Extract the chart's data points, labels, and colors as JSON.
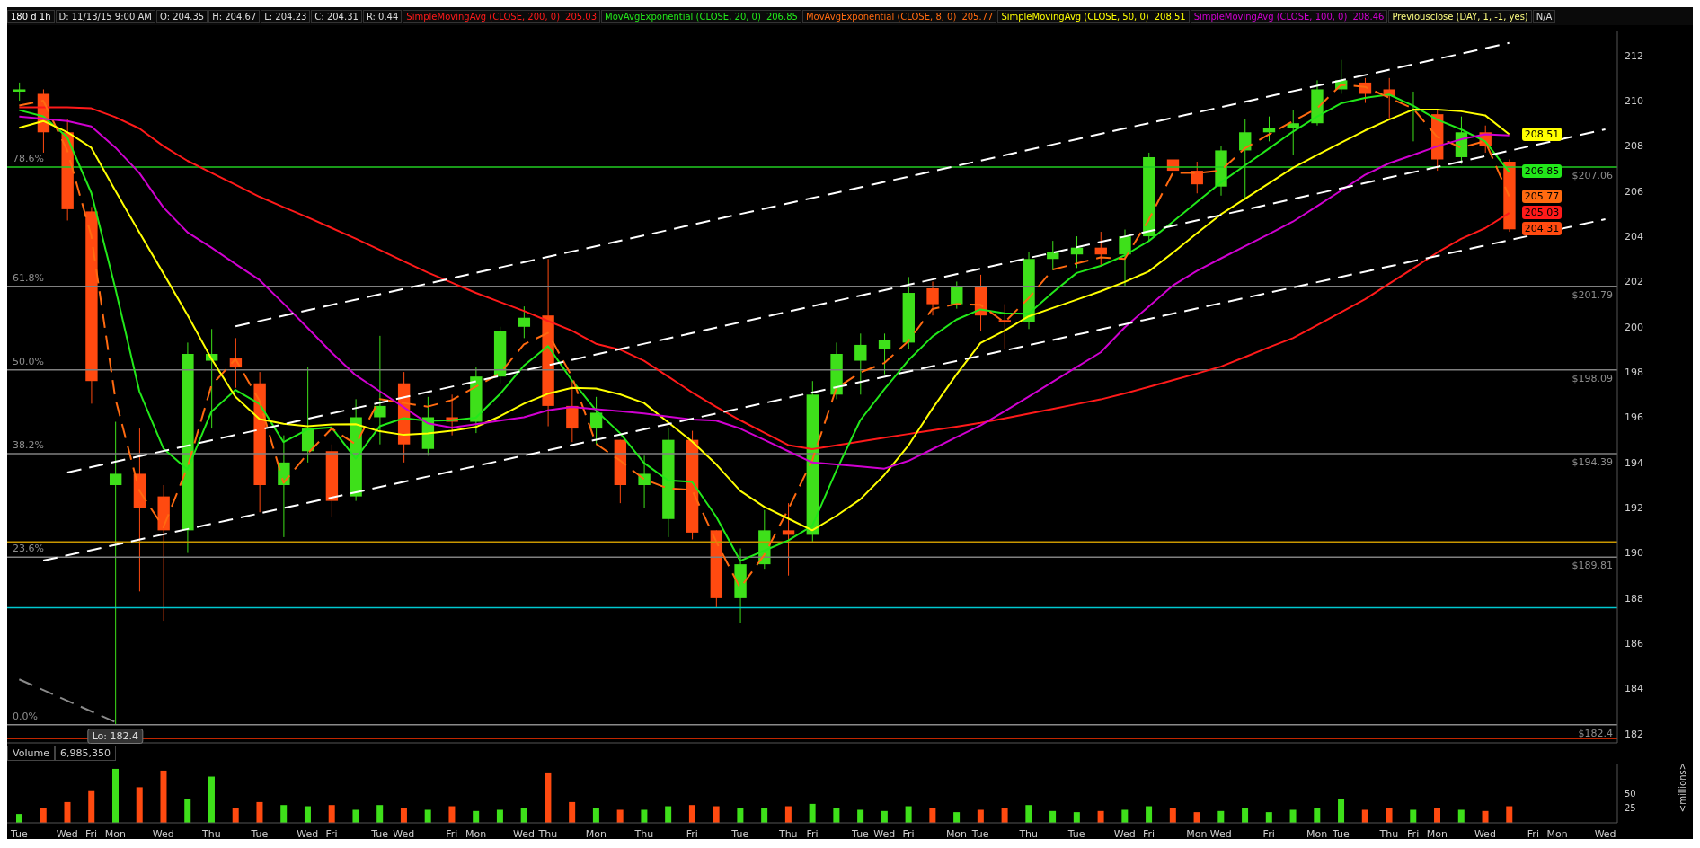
{
  "chart_data": [
    {
      "type": "candlestick",
      "title": "180 d 1h",
      "categories": [
        "Tue",
        null,
        "Wed",
        "Fri",
        "Mon",
        null,
        "Wed",
        null,
        "Thu",
        null,
        "Tue",
        null,
        "Wed",
        "Fri",
        null,
        "Tue",
        "Wed",
        null,
        "Fri",
        "Mon",
        null,
        "Wed",
        "Thu",
        null,
        "Mon",
        null,
        "Thu",
        null,
        "Fri",
        null,
        "Tue",
        null,
        "Thu",
        "Fri",
        null,
        "Tue",
        "Wed",
        "Fri",
        null,
        "Mon",
        "Tue",
        null,
        "Thu",
        null,
        "Tue",
        null,
        "Wed",
        "Fri",
        null,
        "Mon",
        "Wed",
        null,
        "Fri",
        null,
        "Mon",
        "Tue",
        null,
        "Thu",
        "Fri",
        "Mon",
        null,
        "Wed",
        null,
        "Fri",
        "Mon",
        null,
        "Wed"
      ],
      "ohlc": [
        [
          210.4,
          210.8,
          210.0,
          210.5
        ],
        [
          210.3,
          210.5,
          207.7,
          208.6
        ],
        [
          208.6,
          209.2,
          204.7,
          205.2
        ],
        [
          205.1,
          205.3,
          196.6,
          197.6
        ],
        [
          193.0,
          195.8,
          182.4,
          193.5
        ],
        [
          193.5,
          195.5,
          188.3,
          192.0
        ],
        [
          192.5,
          193.0,
          187.0,
          191.0
        ],
        [
          191.0,
          199.3,
          190.0,
          198.8
        ],
        [
          198.5,
          199.9,
          195.5,
          198.8
        ],
        [
          198.6,
          199.5,
          197.3,
          198.2
        ],
        [
          197.5,
          198.0,
          191.8,
          193.0
        ],
        [
          193.0,
          195.2,
          190.7,
          194.0
        ],
        [
          194.5,
          198.2,
          194.0,
          195.5
        ],
        [
          194.5,
          194.8,
          191.6,
          192.3
        ],
        [
          192.5,
          196.8,
          192.3,
          196.0
        ],
        [
          196.0,
          199.6,
          194.8,
          196.5
        ],
        [
          197.5,
          198.0,
          194.0,
          194.8
        ],
        [
          194.6,
          196.9,
          194.3,
          196.0
        ],
        [
          196.0,
          197.0,
          195.2,
          195.8
        ],
        [
          195.8,
          198.2,
          195.3,
          197.8
        ],
        [
          197.8,
          200.0,
          197.5,
          199.8
        ],
        [
          200.0,
          200.9,
          199.5,
          200.4
        ],
        [
          200.5,
          203.0,
          195.6,
          196.5
        ],
        [
          196.5,
          197.6,
          194.9,
          195.5
        ],
        [
          195.5,
          196.9,
          194.8,
          196.2
        ],
        [
          195.0,
          195.0,
          192.2,
          193.0
        ],
        [
          193.0,
          194.3,
          192.0,
          193.5
        ],
        [
          191.5,
          195.5,
          190.7,
          195.0
        ],
        [
          195.0,
          195.4,
          190.6,
          190.9
        ],
        [
          191.0,
          191.0,
          187.6,
          188.0
        ],
        [
          188.0,
          190.2,
          186.9,
          189.5
        ],
        [
          189.5,
          191.9,
          189.3,
          191.0
        ],
        [
          191.0,
          192.2,
          189.0,
          190.8
        ],
        [
          190.8,
          197.6,
          190.5,
          197.0
        ],
        [
          197.0,
          199.3,
          196.8,
          198.8
        ],
        [
          198.5,
          199.7,
          197.0,
          199.2
        ],
        [
          199.0,
          199.7,
          197.9,
          199.4
        ],
        [
          199.3,
          202.2,
          199.0,
          201.5
        ],
        [
          201.7,
          202.0,
          200.5,
          201.0
        ],
        [
          201.0,
          202.0,
          200.8,
          201.8
        ],
        [
          201.8,
          202.3,
          199.8,
          200.5
        ],
        [
          200.3,
          201.0,
          199.0,
          200.2
        ],
        [
          200.2,
          203.3,
          199.9,
          203.0
        ],
        [
          203.0,
          203.8,
          202.5,
          203.3
        ],
        [
          203.2,
          204.0,
          202.6,
          203.5
        ],
        [
          203.5,
          204.2,
          202.7,
          203.2
        ],
        [
          203.2,
          204.3,
          201.8,
          204.0
        ],
        [
          204.0,
          207.7,
          203.8,
          207.5
        ],
        [
          207.4,
          208.0,
          206.3,
          206.9
        ],
        [
          206.9,
          207.3,
          205.9,
          206.3
        ],
        [
          206.2,
          208.0,
          205.8,
          207.8
        ],
        [
          207.8,
          209.2,
          205.6,
          208.6
        ],
        [
          208.6,
          209.3,
          208.2,
          208.8
        ],
        [
          208.8,
          209.6,
          207.6,
          209.0
        ],
        [
          209.0,
          210.9,
          208.9,
          210.5
        ],
        [
          210.5,
          211.8,
          210.3,
          210.9
        ],
        [
          210.8,
          211.0,
          209.9,
          210.3
        ],
        [
          210.5,
          211.0,
          209.2,
          210.2
        ],
        [
          209.6,
          210.4,
          208.2,
          209.6
        ],
        [
          209.4,
          209.6,
          206.9,
          207.4
        ],
        [
          207.5,
          209.3,
          207.2,
          208.6
        ],
        [
          208.6,
          208.9,
          207.7,
          208.0
        ],
        [
          207.3,
          207.4,
          204.2,
          204.31
        ],
        null,
        null,
        null,
        null
      ],
      "colors": [
        "#3ee01a",
        "#ff4a10",
        "#ff4a10",
        "#ff4a10",
        "#3ee01a",
        "#ff4a10",
        "#ff4a10",
        "#3ee01a",
        "#3ee01a",
        "#ff4a10",
        "#ff4a10",
        "#3ee01a",
        "#3ee01a",
        "#ff4a10",
        "#3ee01a",
        "#3ee01a",
        "#ff4a10",
        "#3ee01a",
        "#ff4a10",
        "#3ee01a",
        "#3ee01a",
        "#3ee01a",
        "#ff4a10",
        "#ff4a10",
        "#3ee01a",
        "#ff4a10",
        "#3ee01a",
        "#3ee01a",
        "#ff4a10",
        "#ff4a10",
        "#3ee01a",
        "#3ee01a",
        "#ff4a10",
        "#3ee01a",
        "#3ee01a",
        "#3ee01a",
        "#3ee01a",
        "#3ee01a",
        "#ff4a10",
        "#3ee01a",
        "#ff4a10",
        "#ff4a10",
        "#3ee01a",
        "#3ee01a",
        "#3ee01a",
        "#ff4a10",
        "#3ee01a",
        "#3ee01a",
        "#ff4a10",
        "#ff4a10",
        "#3ee01a",
        "#3ee01a",
        "#3ee01a",
        "#3ee01a",
        "#3ee01a",
        "#3ee01a",
        "#ff4a10",
        "#ff4a10",
        "#3ee01a",
        "#ff4a10",
        "#3ee01a",
        "#ff4a10",
        "#ff4a10",
        null,
        null,
        null,
        null
      ],
      "value_labels": [
        null,
        null,
        null,
        null,
        null,
        null,
        null,
        null,
        null,
        null,
        null,
        null,
        null,
        null,
        null,
        null,
        null,
        null,
        null,
        null,
        null,
        null,
        null,
        null,
        null,
        null,
        null,
        null,
        null,
        null,
        null,
        null,
        null,
        null,
        null,
        null,
        null,
        null,
        null,
        null,
        null,
        null,
        null,
        null,
        null,
        null,
        null,
        null,
        null,
        null,
        null,
        null,
        null,
        null,
        null,
        null,
        null,
        null,
        null,
        null,
        null,
        null,
        "204.31",
        null,
        null,
        null,
        null
      ],
      "series": [
        {
          "type": "line",
          "name": "SimpleMovingAvg (CLOSE, 200, 0)",
          "color": "#ff1a1a",
          "values": [
            209.7,
            209.7,
            209.7,
            209.66,
            209.27,
            208.77,
            207.99,
            207.34,
            206.81,
            206.28,
            205.75,
            205.29,
            204.84,
            204.37,
            203.9,
            203.4,
            202.9,
            202.4,
            201.95,
            201.5,
            201.1,
            200.7,
            200.26,
            199.83,
            199.25,
            198.99,
            198.5,
            197.8,
            197.1,
            196.46,
            195.87,
            195.32,
            194.77,
            194.59,
            194.76,
            194.93,
            195.1,
            195.26,
            195.42,
            195.58,
            195.75,
            195.95,
            196.16,
            196.37,
            196.58,
            196.79,
            197.05,
            197.34,
            197.64,
            197.93,
            198.24,
            198.66,
            199.09,
            199.5,
            200.07,
            200.64,
            201.22,
            201.9,
            202.58,
            203.28,
            203.89,
            204.36,
            205.03,
            null,
            null,
            null,
            null
          ],
          "value_labels": [
            null,
            null,
            null,
            null,
            null,
            null,
            null,
            null,
            null,
            null,
            null,
            null,
            null,
            null,
            null,
            null,
            null,
            null,
            null,
            null,
            null,
            null,
            null,
            null,
            null,
            null,
            null,
            null,
            null,
            null,
            null,
            null,
            null,
            null,
            null,
            null,
            null,
            null,
            null,
            null,
            null,
            null,
            null,
            null,
            null,
            null,
            null,
            null,
            null,
            null,
            null,
            null,
            null,
            null,
            null,
            null,
            null,
            null,
            null,
            null,
            null,
            null,
            "205.03",
            null,
            null,
            null,
            null
          ]
        },
        {
          "type": "line",
          "name": "MovAvgExponential (CLOSE, 20, 0)",
          "color": "#22e81a",
          "values": [
            209.58,
            209.31,
            208.38,
            205.92,
            201.7,
            197.15,
            194.62,
            193.69,
            196.25,
            197.21,
            196.59,
            194.9,
            195.46,
            195.55,
            194.17,
            195.6,
            195.96,
            195.84,
            195.87,
            195.98,
            197.02,
            198.28,
            199.15,
            197.63,
            196.3,
            195.3,
            193.98,
            193.21,
            193.14,
            191.61,
            189.65,
            190.1,
            190.55,
            191.2,
            193.64,
            195.87,
            197.24,
            198.52,
            199.57,
            200.32,
            200.77,
            200.6,
            200.58,
            201.51,
            202.38,
            202.69,
            203.16,
            203.79,
            204.64,
            205.51,
            206.38,
            207.13,
            207.88,
            208.63,
            209.29,
            209.88,
            210.12,
            210.27,
            209.78,
            209.16,
            208.73,
            208.2,
            206.85,
            null,
            null,
            null,
            null
          ],
          "value_labels": [
            null,
            null,
            null,
            null,
            null,
            null,
            null,
            null,
            null,
            null,
            null,
            null,
            null,
            null,
            null,
            null,
            null,
            null,
            null,
            null,
            null,
            null,
            null,
            null,
            null,
            null,
            null,
            null,
            null,
            null,
            null,
            null,
            null,
            null,
            null,
            null,
            null,
            null,
            null,
            null,
            null,
            null,
            null,
            null,
            null,
            null,
            null,
            null,
            null,
            null,
            null,
            null,
            null,
            null,
            null,
            null,
            null,
            null,
            null,
            null,
            null,
            null,
            "206.85",
            null,
            null,
            null,
            null
          ]
        },
        {
          "type": "line",
          "name": "MovAvgExponential (CLOSE, 8, 0)",
          "color": "#ff6a10",
          "line_style": "dashed",
          "values": [
            209.78,
            210.0,
            207.8,
            204.02,
            196.83,
            192.75,
            191.14,
            193.79,
            197.41,
            198.57,
            196.73,
            193.1,
            194.39,
            195.5,
            194.8,
            196.8,
            196.63,
            196.47,
            196.76,
            197.35,
            197.94,
            199.22,
            199.73,
            197.8,
            194.83,
            194.09,
            193.26,
            192.85,
            192.79,
            190.51,
            188.45,
            189.91,
            191.93,
            194.1,
            197.28,
            197.98,
            198.4,
            199.37,
            200.79,
            201.01,
            200.97,
            200.2,
            201.26,
            202.53,
            202.8,
            203.07,
            203.0,
            204.73,
            206.8,
            206.8,
            206.91,
            207.89,
            208.51,
            209.09,
            209.65,
            210.7,
            210.61,
            210.13,
            209.65,
            208.4,
            207.92,
            208.21,
            205.77,
            null,
            null,
            null,
            null
          ],
          "value_labels": [
            null,
            null,
            null,
            null,
            null,
            null,
            null,
            null,
            null,
            null,
            null,
            null,
            null,
            null,
            null,
            null,
            null,
            null,
            null,
            null,
            null,
            null,
            null,
            null,
            null,
            null,
            null,
            null,
            null,
            null,
            null,
            null,
            null,
            null,
            null,
            null,
            null,
            null,
            null,
            null,
            null,
            null,
            null,
            null,
            null,
            null,
            null,
            null,
            null,
            null,
            null,
            null,
            null,
            null,
            null,
            null,
            null,
            null,
            null,
            null,
            null,
            null,
            "205.77",
            null,
            null,
            null,
            null
          ]
        },
        {
          "type": "line",
          "name": "SimpleMovingAvg (CLOSE, 50, 0)",
          "color": "#ffff00",
          "values": [
            208.8,
            209.1,
            208.61,
            207.92,
            206.02,
            204.17,
            202.36,
            200.53,
            198.58,
            196.9,
            195.92,
            195.71,
            195.6,
            195.68,
            195.69,
            195.38,
            195.22,
            195.28,
            195.4,
            195.57,
            196.04,
            196.6,
            197.04,
            197.3,
            197.27,
            197.01,
            196.63,
            195.78,
            194.93,
            193.92,
            192.75,
            192.04,
            191.52,
            191.0,
            191.64,
            192.37,
            193.45,
            194.75,
            196.38,
            197.89,
            199.28,
            199.83,
            200.46,
            200.83,
            201.2,
            201.57,
            201.98,
            202.45,
            203.27,
            204.13,
            204.97,
            205.66,
            206.34,
            207.03,
            207.59,
            208.14,
            208.68,
            209.16,
            209.6,
            209.6,
            209.53,
            209.35,
            208.51,
            null,
            null,
            null,
            null
          ],
          "value_labels": [
            null,
            null,
            null,
            null,
            null,
            null,
            null,
            null,
            null,
            null,
            null,
            null,
            null,
            null,
            null,
            null,
            null,
            null,
            null,
            null,
            null,
            null,
            null,
            null,
            null,
            null,
            null,
            null,
            null,
            null,
            null,
            null,
            null,
            null,
            null,
            null,
            null,
            null,
            null,
            null,
            null,
            null,
            null,
            null,
            null,
            null,
            null,
            null,
            null,
            null,
            null,
            null,
            null,
            null,
            null,
            null,
            null,
            null,
            null,
            null,
            null,
            null,
            "208.51",
            null,
            null,
            null,
            null
          ]
        },
        {
          "type": "line",
          "name": "SimpleMovingAvg (CLOSE, 100, 0)",
          "color": "#d000d0",
          "values": [
            209.3,
            209.2,
            209.1,
            208.86,
            207.93,
            206.8,
            205.28,
            204.18,
            203.5,
            202.78,
            202.07,
            201.03,
            199.95,
            198.86,
            197.86,
            197.15,
            196.44,
            195.73,
            195.54,
            195.69,
            195.85,
            196.0,
            196.31,
            196.46,
            196.36,
            196.27,
            196.17,
            196.03,
            195.9,
            195.85,
            195.5,
            195.0,
            194.5,
            194.0,
            193.91,
            193.82,
            193.73,
            194.07,
            194.59,
            195.12,
            195.64,
            196.26,
            196.91,
            197.56,
            198.22,
            198.87,
            199.97,
            200.9,
            201.82,
            202.47,
            203.02,
            203.56,
            204.1,
            204.65,
            205.33,
            206.02,
            206.72,
            207.23,
            207.6,
            207.98,
            208.29,
            208.51,
            208.46,
            null,
            null,
            null,
            null
          ]
        },
        {
          "type": "line",
          "color": "#ffffff",
          "line_style": "dashed",
          "values": [
            null,
            null,
            null,
            null,
            null,
            null,
            null,
            null,
            null,
            200.02,
            null,
            null,
            null,
            null,
            null,
            null,
            null,
            null,
            null,
            null,
            null,
            null,
            null,
            null,
            null,
            null,
            null,
            null,
            null,
            null,
            null,
            null,
            null,
            null,
            null,
            null,
            null,
            null,
            null,
            null,
            null,
            null,
            null,
            null,
            null,
            null,
            null,
            null,
            null,
            null,
            null,
            null,
            null,
            null,
            null,
            null,
            null,
            null,
            null,
            null,
            null,
            null,
            212.55,
            null,
            null,
            null,
            null
          ]
        },
        {
          "type": "line",
          "color": "#ffffff",
          "line_style": "dashed",
          "values": [
            null,
            null,
            193.56,
            null,
            null,
            null,
            null,
            null,
            null,
            null,
            null,
            null,
            null,
            null,
            null,
            null,
            null,
            null,
            null,
            null,
            null,
            null,
            null,
            null,
            null,
            null,
            null,
            null,
            null,
            null,
            null,
            null,
            null,
            null,
            null,
            null,
            null,
            null,
            null,
            null,
            null,
            null,
            null,
            null,
            null,
            null,
            null,
            null,
            null,
            null,
            null,
            null,
            null,
            null,
            null,
            null,
            null,
            null,
            null,
            null,
            null,
            null,
            null,
            null,
            null,
            null,
            208.73
          ]
        },
        {
          "type": "line",
          "color": "#ffffff",
          "line_style": "dashed",
          "values": [
            null,
            189.66,
            null,
            null,
            null,
            null,
            null,
            null,
            null,
            null,
            null,
            null,
            null,
            null,
            null,
            null,
            null,
            null,
            null,
            null,
            null,
            null,
            null,
            null,
            null,
            null,
            null,
            null,
            null,
            null,
            null,
            null,
            null,
            null,
            null,
            null,
            null,
            null,
            null,
            null,
            null,
            null,
            null,
            null,
            null,
            null,
            null,
            null,
            null,
            null,
            null,
            null,
            null,
            null,
            null,
            null,
            null,
            null,
            null,
            null,
            null,
            null,
            null,
            null,
            null,
            null,
            204.76
          ]
        },
        {
          "type": "line",
          "color": "#8a8a8a",
          "line_style": "dashed",
          "values": [
            184.41,
            null,
            null,
            null,
            182.52,
            null,
            null,
            null,
            null,
            null,
            null,
            null,
            null,
            null,
            null,
            null,
            null,
            null,
            null,
            null,
            null,
            null,
            null,
            null,
            null,
            null,
            null,
            null,
            null,
            null,
            null,
            null,
            null,
            null,
            null,
            null,
            null,
            null,
            null,
            null,
            null,
            null,
            null,
            null,
            null,
            null,
            null,
            null,
            null,
            null,
            null,
            null,
            null,
            null,
            null,
            null,
            null,
            null,
            null,
            null,
            null,
            null,
            null,
            null,
            null,
            null,
            null
          ]
        }
      ],
      "ylim": [
        181.6,
        213.1
      ],
      "yticks": [
        182,
        184,
        186,
        188,
        190,
        192,
        194,
        196,
        198,
        200,
        202,
        204,
        206,
        208,
        210,
        212
      ],
      "tick_labels": "y",
      "legend": "top",
      "ref_lines": [
        {
          "axis": "y",
          "value": 207.06,
          "label": "$207.06",
          "color": "#22cc22"
        },
        {
          "axis": "y",
          "value": 201.79,
          "label": "$201.79",
          "color": "#808080"
        },
        {
          "axis": "y",
          "value": 198.09,
          "label": "$198.09",
          "color": "#808080"
        },
        {
          "axis": "y",
          "value": 194.39,
          "label": "$194.39",
          "color": "#808080"
        },
        {
          "axis": "y",
          "value": 189.81,
          "label": "$189.81",
          "color": "#808080"
        },
        {
          "axis": "y",
          "value": 182.4,
          "label": "$182.4",
          "color": "#8a8a8a"
        },
        {
          "axis": "y",
          "value": 190.49,
          "color": "#c89600"
        },
        {
          "axis": "y",
          "value": 187.58,
          "color": "#00c8d0"
        },
        {
          "axis": "y",
          "value": 181.8,
          "color": "#ff3300"
        }
      ],
      "annotations": [
        "D: 11/13/15 9:00 AM",
        "O: 204.35",
        "H: 204.67",
        "L: 204.23",
        "C: 204.31",
        "R: 0.44",
        "205.03",
        "206.85",
        "205.77",
        "208.51",
        "208.46",
        "Previousclose (DAY, 1, -1, yes)",
        "N/A",
        {
          "text": "78.6%",
          "y": 207.06
        },
        {
          "text": "61.8%",
          "y": 201.79
        },
        {
          "text": "50.0%",
          "y": 198.09
        },
        {
          "text": "38.2%",
          "y": 194.39
        },
        {
          "text": "23.6%",
          "y": 189.81
        },
        {
          "text": "0.0%",
          "y": 182.4
        },
        {
          "text": "Lo: 182.4",
          "x": "Mon",
          "y": 182.4
        }
      ]
    },
    {
      "type": "bar",
      "title": "Volume",
      "ylabel": "<millions>",
      "categories": [
        "Tue",
        null,
        "Wed",
        "Fri",
        "Mon",
        null,
        "Wed",
        null,
        "Thu",
        null,
        "Tue",
        null,
        "Wed",
        "Fri",
        null,
        "Tue",
        "Wed",
        null,
        "Fri",
        "Mon",
        null,
        "Wed",
        "Thu",
        null,
        "Mon",
        null,
        "Thu",
        null,
        "Fri",
        null,
        "Tue",
        null,
        "Thu",
        "Fri",
        null,
        "Tue",
        "Wed",
        "Fri",
        null,
        "Mon",
        "Tue",
        null,
        "Thu",
        null,
        "Tue",
        null,
        "Wed",
        "Fri",
        null,
        "Mon",
        "Wed",
        null,
        "Fri",
        null,
        "Mon",
        "Tue",
        null,
        "Thu",
        "Fri",
        "Mon",
        null,
        "Wed",
        null,
        "Fri",
        "Mon",
        null,
        "Wed"
      ],
      "values": [
        15,
        25,
        35,
        55,
        91,
        60,
        88,
        40,
        78,
        25,
        35,
        30,
        28,
        30,
        22,
        30,
        25,
        22,
        28,
        20,
        22,
        25,
        85,
        35,
        25,
        22,
        22,
        28,
        30,
        28,
        25,
        25,
        28,
        32,
        25,
        22,
        20,
        28,
        25,
        18,
        22,
        25,
        30,
        20,
        18,
        20,
        22,
        28,
        25,
        18,
        20,
        25,
        18,
        22,
        25,
        40,
        22,
        25,
        22,
        25,
        22,
        20,
        28,
        null,
        null,
        null,
        null
      ],
      "colors": [
        "#3ee01a",
        "#ff4a10",
        "#ff4a10",
        "#ff4a10",
        "#3ee01a",
        "#ff4a10",
        "#ff4a10",
        "#3ee01a",
        "#3ee01a",
        "#ff4a10",
        "#ff4a10",
        "#3ee01a",
        "#3ee01a",
        "#ff4a10",
        "#3ee01a",
        "#3ee01a",
        "#ff4a10",
        "#3ee01a",
        "#ff4a10",
        "#3ee01a",
        "#3ee01a",
        "#3ee01a",
        "#ff4a10",
        "#ff4a10",
        "#3ee01a",
        "#ff4a10",
        "#3ee01a",
        "#3ee01a",
        "#ff4a10",
        "#ff4a10",
        "#3ee01a",
        "#3ee01a",
        "#ff4a10",
        "#3ee01a",
        "#3ee01a",
        "#3ee01a",
        "#3ee01a",
        "#3ee01a",
        "#ff4a10",
        "#3ee01a",
        "#ff4a10",
        "#ff4a10",
        "#3ee01a",
        "#3ee01a",
        "#3ee01a",
        "#ff4a10",
        "#3ee01a",
        "#3ee01a",
        "#ff4a10",
        "#ff4a10",
        "#3ee01a",
        "#3ee01a",
        "#3ee01a",
        "#3ee01a",
        "#3ee01a",
        "#3ee01a",
        "#ff4a10",
        "#ff4a10",
        "#3ee01a",
        "#ff4a10",
        "#3ee01a",
        "#ff4a10",
        "#ff4a10",
        null,
        null,
        null,
        null
      ],
      "ylim": [
        0,
        100
      ],
      "yticks": [
        25,
        50
      ],
      "annotations": [
        "6,985,350"
      ]
    }
  ]
}
